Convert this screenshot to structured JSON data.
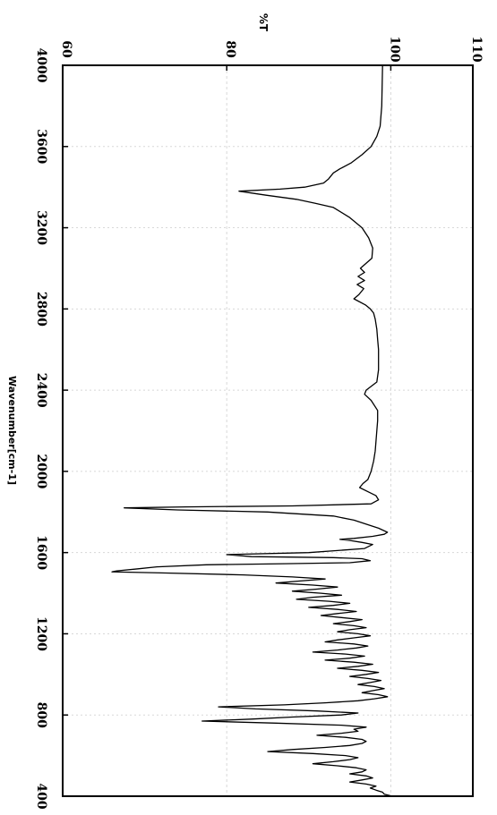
{
  "chart_data": {
    "type": "line",
    "title": "",
    "xlabel": "Wavenumber[cm-1]",
    "ylabel": "%T",
    "xlim": [
      4000,
      400
    ],
    "ylim": [
      60,
      110
    ],
    "x_ticks": [
      "4000",
      "3600",
      "3200",
      "2800",
      "2400",
      "2000",
      "1600",
      "1200",
      "800",
      "400"
    ],
    "y_ticks": [
      "60",
      "80",
      "100",
      "110"
    ],
    "x_tick_values": [
      4000,
      3600,
      3200,
      2800,
      2400,
      2000,
      1600,
      1200,
      800,
      400
    ],
    "y_tick_values": [
      60,
      80,
      100,
      110
    ],
    "grid": true,
    "series": [
      {
        "color": "#000000",
        "x": [
          4000,
          3800,
          3700,
          3650,
          3600,
          3560,
          3520,
          3490,
          3470,
          3450,
          3440,
          3420,
          3400,
          3390,
          3380,
          3360,
          3340,
          3320,
          3300,
          3250,
          3200,
          3150,
          3100,
          3050,
          3000,
          2980,
          2960,
          2940,
          2920,
          2900,
          2870,
          2850,
          2820,
          2800,
          2780,
          2750,
          2700,
          2650,
          2600,
          2500,
          2440,
          2400,
          2380,
          2350,
          2300,
          2250,
          2200,
          2100,
          2050,
          2000,
          1960,
          1940,
          1920,
          1900,
          1880,
          1860,
          1840,
          1830,
          1825,
          1820,
          1810,
          1800,
          1780,
          1760,
          1740,
          1720,
          1700,
          1690,
          1680,
          1670,
          1665,
          1660,
          1650,
          1640,
          1620,
          1610,
          1600,
          1590,
          1580,
          1575,
          1570,
          1560,
          1550,
          1545,
          1540,
          1530,
          1520,
          1510,
          1505,
          1500,
          1490,
          1480,
          1470,
          1460,
          1450,
          1440,
          1430,
          1420,
          1410,
          1400,
          1390,
          1380,
          1370,
          1360,
          1350,
          1340,
          1330,
          1320,
          1310,
          1300,
          1290,
          1280,
          1270,
          1260,
          1250,
          1240,
          1230,
          1220,
          1210,
          1200,
          1190,
          1180,
          1170,
          1160,
          1150,
          1140,
          1130,
          1120,
          1110,
          1100,
          1090,
          1080,
          1070,
          1060,
          1050,
          1040,
          1030,
          1020,
          1010,
          1000,
          990,
          980,
          970,
          960,
          950,
          940,
          930,
          920,
          910,
          900,
          890,
          880,
          870,
          860,
          850,
          840,
          830,
          820,
          810,
          800,
          790,
          780,
          770,
          760,
          750,
          740,
          730,
          720,
          710,
          700,
          690,
          680,
          670,
          660,
          650,
          640,
          630,
          620,
          610,
          600,
          590,
          580,
          570,
          560,
          550,
          540,
          530,
          520,
          510,
          500,
          490,
          480,
          470,
          460,
          450,
          440,
          430,
          420,
          410,
          400
        ],
        "y": [
          99.0,
          98.9,
          98.7,
          98.3,
          97.6,
          96.5,
          95.2,
          93.8,
          93.0,
          92.6,
          92.4,
          91.8,
          89.5,
          86.5,
          81.5,
          84.8,
          88.5,
          90.8,
          93.0,
          95.0,
          96.5,
          97.3,
          97.8,
          97.7,
          96.3,
          96.8,
          96.0,
          96.8,
          95.9,
          96.7,
          96.1,
          95.5,
          96.9,
          97.5,
          97.9,
          98.1,
          98.3,
          98.4,
          98.5,
          98.5,
          98.3,
          97.0,
          96.8,
          97.6,
          98.4,
          98.4,
          98.3,
          98.1,
          97.9,
          97.6,
          97.2,
          96.6,
          96.2,
          97.2,
          98.2,
          98.5,
          97.6,
          88.0,
          75.0,
          67.5,
          74.0,
          85.0,
          93.0,
          95.5,
          97.0,
          98.5,
          99.6,
          99.2,
          97.8,
          95.5,
          93.8,
          95.0,
          96.5,
          97.8,
          96.8,
          93.5,
          90.0,
          80.0,
          83.0,
          93.0,
          96.5,
          97.5,
          95.0,
          87.0,
          77.5,
          71.5,
          69.2,
          66.6,
          66.0,
          72.0,
          82.0,
          88.0,
          92.0,
          89.0,
          86.0,
          90.5,
          93.5,
          91.0,
          88.0,
          91.5,
          94.0,
          90.5,
          88.5,
          92.5,
          95.0,
          93.0,
          90.0,
          93.5,
          95.8,
          93.5,
          91.5,
          94.0,
          96.5,
          95.0,
          93.0,
          95.5,
          97.0,
          95.0,
          93.5,
          96.0,
          97.5,
          95.5,
          93.5,
          92.0,
          95.5,
          97.2,
          95.8,
          93.5,
          90.5,
          94.5,
          96.8,
          95.0,
          92.0,
          95.5,
          97.8,
          96.0,
          93.5,
          96.5,
          98.5,
          97.0,
          95.0,
          97.2,
          98.8,
          97.5,
          96.0,
          98.0,
          99.2,
          97.8,
          96.5,
          98.5,
          99.6,
          98.0,
          96.0,
          92.0,
          87.0,
          79.0,
          83.5,
          91.0,
          96.0,
          94.0,
          88.0,
          83.0,
          77.0,
          86.0,
          94.0,
          97.0,
          95.5,
          96.0,
          94.0,
          91.0,
          94.5,
          96.5,
          97.0,
          96.5,
          95.0,
          92.0,
          88.0,
          85.0,
          90.5,
          94.5,
          96.0,
          95.0,
          93.0,
          90.5,
          93.5,
          95.8,
          97.0,
          96.5,
          95.0,
          97.0,
          97.8,
          96.5,
          95.0,
          97.0,
          98.2,
          97.5,
          98.2,
          99.0,
          99.2,
          100.2
        ]
      }
    ]
  }
}
